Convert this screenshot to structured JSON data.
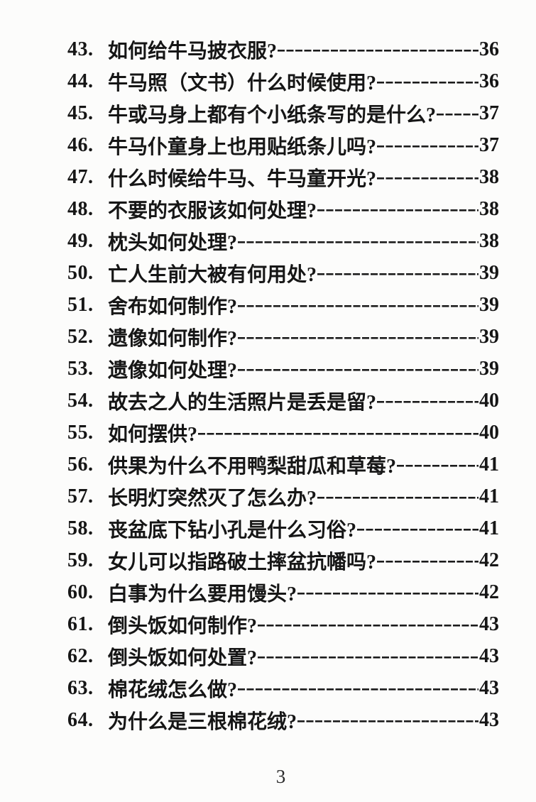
{
  "colors": {
    "text": "#161616",
    "background": "#fcfcfb"
  },
  "toc": {
    "items": [
      {
        "num": "43.",
        "title": "如何给牛马披衣服?",
        "page": "36"
      },
      {
        "num": "44.",
        "title": "牛马照（文书）什么时候使用?",
        "page": "36"
      },
      {
        "num": "45.",
        "title": "牛或马身上都有个小纸条写的是什么?",
        "page": "37"
      },
      {
        "num": "46.",
        "title": "牛马仆童身上也用贴纸条儿吗?",
        "page": "37"
      },
      {
        "num": "47.",
        "title": "什么时候给牛马、牛马童开光?",
        "page": "38"
      },
      {
        "num": "48.",
        "title": "不要的衣服该如何处理?",
        "page": "38"
      },
      {
        "num": "49.",
        "title": "枕头如何处理?",
        "page": "38"
      },
      {
        "num": "50.",
        "title": "亡人生前大被有何用处?",
        "page": "39"
      },
      {
        "num": "51.",
        "title": "舍布如何制作?",
        "page": "39"
      },
      {
        "num": "52.",
        "title": "遗像如何制作?",
        "page": "39"
      },
      {
        "num": "53.",
        "title": "遗像如何处理?",
        "page": "39"
      },
      {
        "num": "54.",
        "title": "故去之人的生活照片是丢是留?",
        "page": "40"
      },
      {
        "num": "55.",
        "title": "如何摆供?",
        "page": "40"
      },
      {
        "num": "56.",
        "title": "供果为什么不用鸭梨甜瓜和草莓?",
        "page": "41"
      },
      {
        "num": "57.",
        "title": "长明灯突然灭了怎么办?",
        "page": "41"
      },
      {
        "num": "58.",
        "title": "丧盆底下钻小孔是什么习俗?",
        "page": "41"
      },
      {
        "num": "59.",
        "title": "女儿可以指路破土摔盆抗幡吗?",
        "page": "42"
      },
      {
        "num": "60.",
        "title": "白事为什么要用馒头?",
        "page": "42"
      },
      {
        "num": "61.",
        "title": "倒头饭如何制作?",
        "page": "43"
      },
      {
        "num": "62.",
        "title": "倒头饭如何处置?",
        "page": "43"
      },
      {
        "num": "63.",
        "title": "棉花绒怎么做?",
        "page": "43"
      },
      {
        "num": "64.",
        "title": "为什么是三根棉花绒?",
        "page": "43"
      }
    ]
  },
  "footer": {
    "page_number": "3"
  }
}
